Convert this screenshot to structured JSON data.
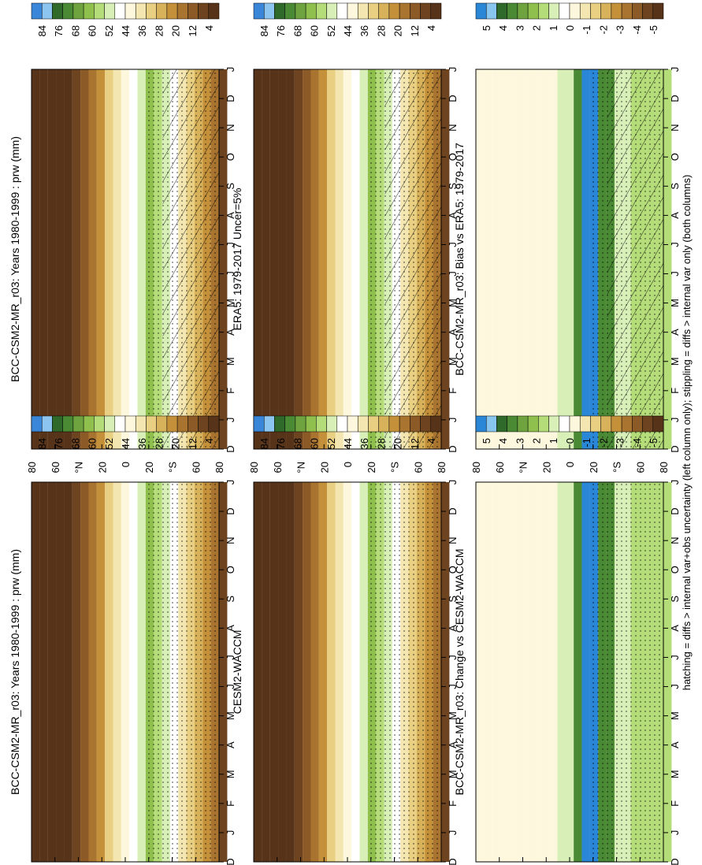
{
  "figure": {
    "footnote": "hatching = diffs > internal var+obs uncertainty (left column only); stippling = diffs > internal var only (both columns)"
  },
  "colors": {
    "abs_scale": [
      "#3a86d8",
      "#8cc6f0",
      "#2f6a2b",
      "#4b8a34",
      "#6ea33f",
      "#8fc04d",
      "#b4dc78",
      "#d8efb8",
      "#ffffff",
      "#fdf8dd",
      "#f3e6b0",
      "#e8cf82",
      "#d8b25a",
      "#c4913a",
      "#a97430",
      "#8c5a27",
      "#6e4420",
      "#573419"
    ],
    "diff_scale": [
      "#2a86d6",
      "#88c6f0",
      "#2f6a2b",
      "#4b8a34",
      "#6ea33f",
      "#8fc04d",
      "#b4dc78",
      "#d8efb8",
      "#ffffff",
      "#fdf8dd",
      "#f3e6b0",
      "#e8cf82",
      "#d8b25a",
      "#c4913a",
      "#a97430",
      "#8c5a27",
      "#6e4420",
      "#573419"
    ]
  },
  "chart_data": [
    {
      "type": "heatmap",
      "title": "BCC-CSM2-MR_r03: Years 1980-1999 : prw (mm)",
      "x_ticks": [
        "D",
        "J",
        "F",
        "M",
        "A",
        "M",
        "J",
        "J",
        "A",
        "S",
        "O",
        "N",
        "D",
        "J"
      ],
      "y_ticks": [
        "80",
        "60",
        "°N",
        "20",
        "0",
        "20",
        "°S",
        "60",
        "80"
      ],
      "colorbar_ticks": [
        "84",
        "76",
        "68",
        "60",
        "52",
        "44",
        "36",
        "28",
        "20",
        "12",
        "4"
      ],
      "overlay": "hatching+stippling"
    },
    {
      "type": "heatmap",
      "title": "BCC-CSM2-MR_r03: Years 1980-1999 : prw (mm)",
      "x_ticks": [
        "D",
        "J",
        "F",
        "M",
        "A",
        "M",
        "J",
        "J",
        "A",
        "S",
        "O",
        "N",
        "D",
        "J"
      ],
      "y_ticks": [
        "80",
        "60",
        "°N",
        "20",
        "0",
        "20",
        "°S",
        "60",
        "80"
      ],
      "colorbar_ticks": [
        "84",
        "76",
        "68",
        "60",
        "52",
        "44",
        "36",
        "28",
        "20",
        "12",
        "4"
      ],
      "overlay": "stippling"
    },
    {
      "type": "heatmap",
      "title": "ERA5: 1979-2017 Uncer=5%",
      "x_ticks": [
        "D",
        "J",
        "F",
        "M",
        "A",
        "M",
        "J",
        "J",
        "A",
        "S",
        "O",
        "N",
        "D",
        "J"
      ],
      "y_ticks": [
        "80",
        "60",
        "°N",
        "20",
        "0",
        "20",
        "°S",
        "60",
        "80"
      ],
      "colorbar_ticks": [
        "84",
        "76",
        "68",
        "60",
        "52",
        "44",
        "36",
        "28",
        "20",
        "12",
        "4"
      ],
      "overlay": "hatching+stippling"
    },
    {
      "type": "heatmap",
      "title": "CESM2-WACCM",
      "x_ticks": [
        "D",
        "J",
        "F",
        "M",
        "A",
        "M",
        "J",
        "J",
        "A",
        "S",
        "O",
        "N",
        "D",
        "J"
      ],
      "y_ticks": [
        "80",
        "60",
        "°N",
        "20",
        "0",
        "20",
        "°S",
        "60",
        "80"
      ],
      "colorbar_ticks": [
        "84",
        "76",
        "68",
        "60",
        "52",
        "44",
        "36",
        "28",
        "20",
        "12",
        "4"
      ],
      "overlay": "stippling"
    },
    {
      "type": "heatmap",
      "title": "BCC-CSM2-MR_r03: Bias vs ERA5: 1979-2017",
      "x_ticks": [
        "D",
        "J",
        "F",
        "M",
        "A",
        "M",
        "J",
        "J",
        "A",
        "S",
        "O",
        "N",
        "D",
        "J"
      ],
      "y_ticks": [
        "80",
        "60",
        "°N",
        "20",
        "0",
        "20",
        "°S",
        "60",
        "80"
      ],
      "colorbar_ticks": [
        "5",
        "4",
        "3",
        "2",
        "1",
        "0",
        "-1",
        "-2",
        "-3",
        "-4",
        "-5"
      ],
      "overlay": "hatching+stippling"
    },
    {
      "type": "heatmap",
      "title": "BCC-CSM2-MR_r03: Change vs CESM2-WACCM",
      "x_ticks": [
        "D",
        "J",
        "F",
        "M",
        "A",
        "M",
        "J",
        "J",
        "A",
        "S",
        "O",
        "N",
        "D",
        "J"
      ],
      "y_ticks": [
        "80",
        "60",
        "°N",
        "20",
        "0",
        "20",
        "°S",
        "60",
        "80"
      ],
      "colorbar_ticks": [
        "5",
        "4",
        "3",
        "2",
        "1",
        "0",
        "-1",
        "-2",
        "-3",
        "-4",
        "-5"
      ],
      "overlay": "stippling"
    }
  ]
}
